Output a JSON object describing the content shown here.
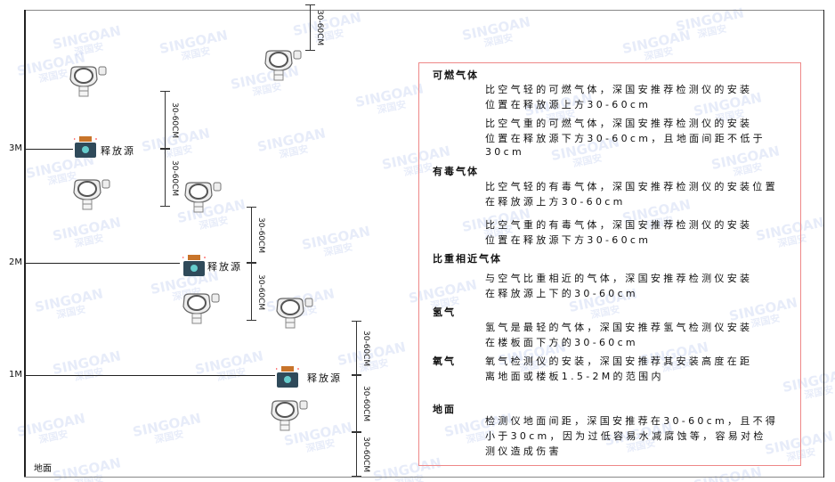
{
  "watermark": {
    "brand": "SINGOAN",
    "name": "深国安"
  },
  "levels": [
    "3M",
    "2M",
    "1M"
  ],
  "floor_label": "地面",
  "source_label": "释放源",
  "dimension_label": "30-60CM",
  "legend": {
    "sections": [
      {
        "title": "可燃气体",
        "lines": [
          "比空气轻的可燃气体，深国安推荐检测仪的安装",
          "位置在释放源上方30-60cm",
          "比空气重的可燃气体，深国安推荐检测仪的安装",
          "位置在释放源下方30-60cm，且地面间距不低于",
          "30cm"
        ]
      },
      {
        "title": "有毒气体",
        "lines": [
          "比空气轻的有毒气体，深国安推荐检测仪的安装位置",
          "在释放源上方30-60cm",
          "比空气重的有毒气体，深国安推荐检测仪的安装",
          "位置在释放源下方30-60cm"
        ]
      },
      {
        "title": "比重相近气体",
        "lines": [
          "与空气比重相近的气体，深国安推荐检测仪安装",
          "在释放源上下的30-60cm"
        ]
      },
      {
        "title": "氢气",
        "lines": [
          "氢气是最轻的气体，深国安推荐氢气检测仪安装",
          "在楼板面下方的30-60cm"
        ]
      },
      {
        "title": "氧气",
        "lines": [
          "氧气检测仪的安装，深国安推荐其安装高度在距",
          "离地面或楼板1.5-2M的范围内"
        ]
      },
      {
        "title": "地面",
        "lines": [
          "检测仪地面间距，深国安推荐在30-60cm，且不得",
          "小于30cm，因为过低容易水减腐蚀等，容易对检",
          "测仪造成伤害"
        ]
      }
    ]
  },
  "colors": {
    "box_border": "#e88888",
    "source_body": "#2f4a5a",
    "source_cap": "#c8742a",
    "watermark": "#7896dc"
  }
}
